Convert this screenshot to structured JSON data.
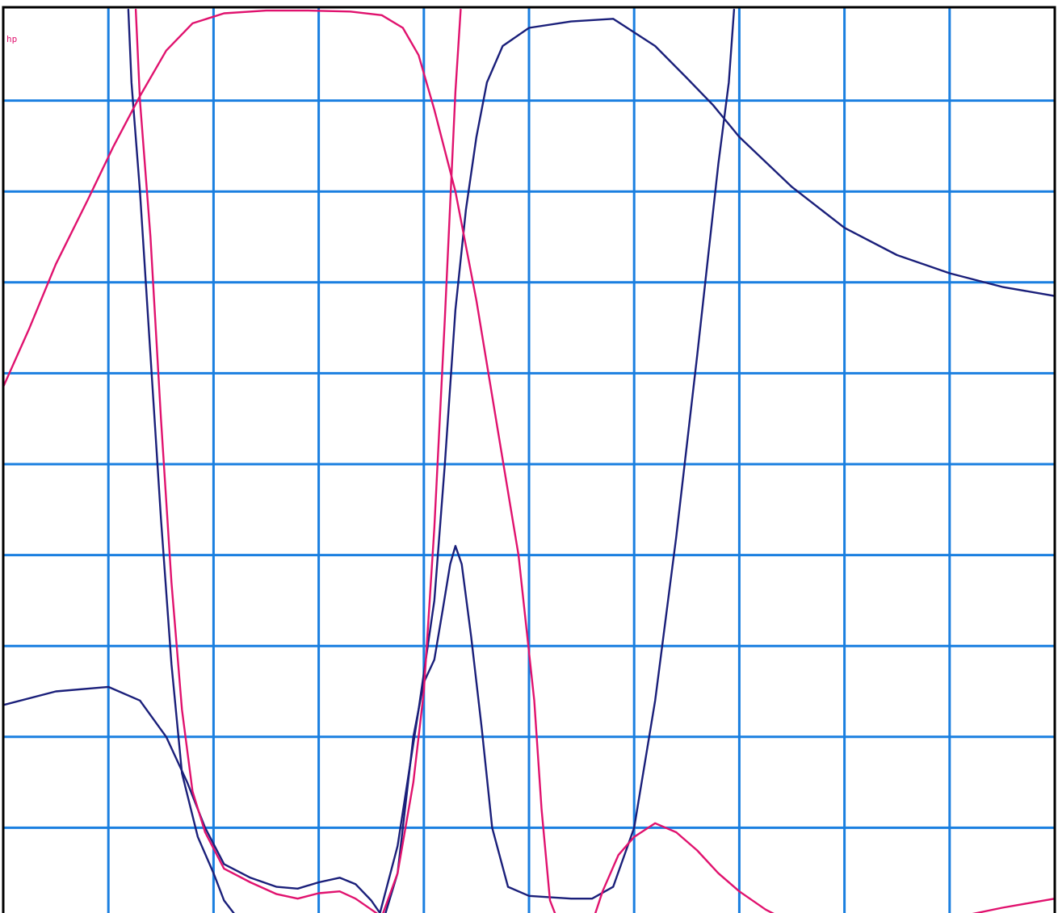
{
  "chart_data": {
    "type": "line",
    "title": "",
    "xlabel": "",
    "ylabel": "",
    "corner_mark": "hp",
    "grid": true,
    "xlim": [
      0,
      10
    ],
    "ylim": [
      0,
      10
    ],
    "x_divisions": 10,
    "y_divisions": 10,
    "colors": {
      "grid": "#1a7fe0",
      "frame": "#000000",
      "magenta": "#e0126e",
      "navy": "#1a1f7a",
      "background": "#ffffff"
    },
    "series": [
      {
        "color_key": "navy",
        "points": [
          [
            1.19,
            10.0
          ],
          [
            1.22,
            9.2
          ],
          [
            1.3,
            8.0
          ],
          [
            1.4,
            6.2
          ],
          [
            1.5,
            4.4
          ],
          [
            1.6,
            2.8
          ],
          [
            1.7,
            1.6
          ],
          [
            1.85,
            0.9
          ],
          [
            2.0,
            0.5
          ],
          [
            2.1,
            0.2
          ],
          [
            2.2,
            0.05
          ],
          [
            2.25,
            -0.1
          ]
        ]
      },
      {
        "color_key": "navy",
        "points": [
          [
            0.0,
            2.35
          ],
          [
            0.5,
            2.5
          ],
          [
            1.0,
            2.55
          ],
          [
            1.3,
            2.4
          ],
          [
            1.55,
            2.0
          ],
          [
            1.75,
            1.5
          ],
          [
            1.92,
            1.0
          ],
          [
            2.1,
            0.6
          ],
          [
            2.35,
            0.45
          ],
          [
            2.6,
            0.35
          ],
          [
            2.8,
            0.33
          ],
          [
            3.0,
            0.4
          ],
          [
            3.2,
            0.45
          ],
          [
            3.35,
            0.38
          ],
          [
            3.5,
            0.2
          ],
          [
            3.62,
            0.0
          ],
          [
            3.75,
            0.5
          ],
          [
            3.85,
            1.5
          ],
          [
            3.9,
            2.0
          ],
          [
            4.0,
            2.6
          ],
          [
            4.1,
            2.85
          ],
          [
            4.18,
            3.4
          ],
          [
            4.25,
            3.9
          ],
          [
            4.3,
            4.1
          ],
          [
            4.36,
            3.9
          ],
          [
            4.45,
            3.1
          ],
          [
            4.55,
            2.1
          ],
          [
            4.65,
            1.0
          ],
          [
            4.8,
            0.35
          ],
          [
            5.0,
            0.25
          ],
          [
            5.4,
            0.22
          ],
          [
            5.6,
            0.22
          ],
          [
            5.8,
            0.35
          ],
          [
            6.0,
            1.0
          ],
          [
            6.2,
            2.4
          ],
          [
            6.4,
            4.2
          ],
          [
            6.6,
            6.2
          ],
          [
            6.8,
            8.3
          ],
          [
            6.9,
            9.2
          ],
          [
            6.95,
            10.0
          ]
        ]
      },
      {
        "color_key": "navy",
        "points": [
          [
            3.58,
            0.05
          ],
          [
            3.75,
            0.8
          ],
          [
            3.95,
            2.3
          ],
          [
            4.1,
            3.5
          ],
          [
            4.2,
            5.0
          ],
          [
            4.3,
            6.7
          ],
          [
            4.4,
            7.8
          ],
          [
            4.5,
            8.6
          ],
          [
            4.6,
            9.2
          ],
          [
            4.75,
            9.6
          ],
          [
            5.0,
            9.8
          ],
          [
            5.4,
            9.87
          ],
          [
            5.8,
            9.9
          ],
          [
            6.2,
            9.6
          ],
          [
            6.5,
            9.25
          ],
          [
            6.75,
            8.95
          ],
          [
            7.0,
            8.6
          ],
          [
            7.5,
            8.05
          ],
          [
            8.0,
            7.6
          ],
          [
            8.5,
            7.3
          ],
          [
            9.0,
            7.1
          ],
          [
            9.5,
            6.95
          ],
          [
            10.0,
            6.85
          ]
        ]
      },
      {
        "color_key": "magenta",
        "points": [
          [
            1.26,
            10.0
          ],
          [
            1.3,
            9.0
          ],
          [
            1.4,
            7.5
          ],
          [
            1.5,
            5.5
          ],
          [
            1.6,
            3.7
          ],
          [
            1.7,
            2.3
          ],
          [
            1.8,
            1.4
          ],
          [
            1.92,
            0.95
          ],
          [
            2.1,
            0.55
          ],
          [
            2.35,
            0.4
          ],
          [
            2.6,
            0.27
          ],
          [
            2.8,
            0.22
          ],
          [
            3.0,
            0.28
          ],
          [
            3.2,
            0.3
          ],
          [
            3.35,
            0.22
          ],
          [
            3.5,
            0.1
          ],
          [
            3.6,
            0.02
          ],
          [
            3.75,
            0.5
          ],
          [
            3.9,
            1.5
          ],
          [
            4.0,
            2.5
          ],
          [
            4.1,
            4.3
          ],
          [
            4.2,
            6.6
          ],
          [
            4.3,
            9.1
          ],
          [
            4.35,
            10.0
          ]
        ]
      },
      {
        "color_key": "magenta",
        "points": [
          [
            0.0,
            5.85
          ],
          [
            0.25,
            6.5
          ],
          [
            0.5,
            7.2
          ],
          [
            0.8,
            7.9
          ],
          [
            1.05,
            8.5
          ],
          [
            1.3,
            9.05
          ],
          [
            1.55,
            9.55
          ],
          [
            1.8,
            9.85
          ],
          [
            2.1,
            9.96
          ],
          [
            2.5,
            9.99
          ],
          [
            2.9,
            9.99
          ],
          [
            3.3,
            9.98
          ],
          [
            3.6,
            9.94
          ],
          [
            3.8,
            9.8
          ],
          [
            3.95,
            9.5
          ],
          [
            4.1,
            8.9
          ],
          [
            4.3,
            8.0
          ],
          [
            4.5,
            6.8
          ],
          [
            4.7,
            5.4
          ],
          [
            4.9,
            4.0
          ],
          [
            5.05,
            2.4
          ],
          [
            5.12,
            1.2
          ],
          [
            5.2,
            0.2
          ],
          [
            5.3,
            -0.1
          ],
          [
            5.6,
            -0.05
          ],
          [
            5.7,
            0.3
          ],
          [
            5.85,
            0.7
          ],
          [
            6.0,
            0.9
          ],
          [
            6.2,
            1.05
          ],
          [
            6.4,
            0.95
          ],
          [
            6.6,
            0.75
          ],
          [
            6.8,
            0.5
          ],
          [
            7.0,
            0.3
          ],
          [
            7.25,
            0.1
          ],
          [
            7.5,
            -0.05
          ],
          [
            8.0,
            -0.1
          ],
          [
            8.5,
            -0.1
          ],
          [
            9.0,
            0.0
          ],
          [
            9.5,
            0.12
          ],
          [
            10.0,
            0.22
          ]
        ]
      }
    ]
  }
}
